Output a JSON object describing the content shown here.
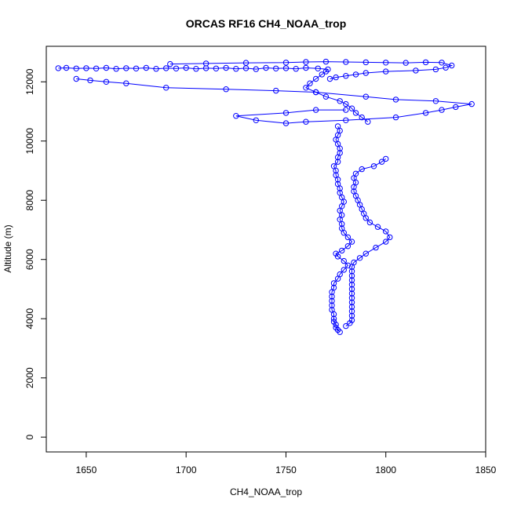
{
  "chart_data": {
    "type": "scatter",
    "title": "ORCAS RF16 CH4_NOAA_trop",
    "xlabel": "CH4_NOAA_trop",
    "ylabel": "Altitude (m)",
    "xlim": [
      1630,
      1850
    ],
    "ylim": [
      -500,
      13200
    ],
    "xticks": [
      1650,
      1700,
      1750,
      1800,
      1850
    ],
    "yticks": [
      0,
      2000,
      4000,
      6000,
      8000,
      10000,
      12000
    ],
    "grid": false,
    "legend": "none",
    "color": "#0000ff",
    "series": [
      {
        "points": [
          [
            1777,
            3550
          ],
          [
            1776,
            3620
          ],
          [
            1775,
            3700
          ],
          [
            1775,
            3800
          ],
          [
            1774,
            3900
          ],
          [
            1774,
            4000
          ],
          [
            1774,
            4150
          ],
          [
            1773,
            4300
          ],
          [
            1773,
            4450
          ],
          [
            1773,
            4600
          ],
          [
            1773,
            4750
          ],
          [
            1773,
            4900
          ],
          [
            1774,
            5050
          ],
          [
            1774,
            5200
          ],
          [
            1776,
            5350
          ],
          [
            1777,
            5500
          ],
          [
            1779,
            5650
          ],
          [
            1781,
            5800
          ],
          [
            1779,
            5950
          ],
          [
            1776,
            6100
          ],
          [
            1775,
            6200
          ],
          [
            1778,
            6300
          ],
          [
            1781,
            6450
          ],
          [
            1783,
            6600
          ],
          [
            1781,
            6750
          ],
          [
            1779,
            6900
          ],
          [
            1778,
            7050
          ],
          [
            1778,
            7200
          ],
          [
            1777,
            7350
          ],
          [
            1778,
            7500
          ],
          [
            1777,
            7650
          ],
          [
            1778,
            7800
          ],
          [
            1779,
            7950
          ],
          [
            1778,
            8100
          ],
          [
            1777,
            8250
          ],
          [
            1777,
            8400
          ],
          [
            1776,
            8550
          ],
          [
            1776,
            8700
          ],
          [
            1775,
            8850
          ],
          [
            1775,
            9000
          ],
          [
            1774,
            9150
          ],
          [
            1776,
            9300
          ],
          [
            1776,
            9450
          ],
          [
            1777,
            9600
          ],
          [
            1777,
            9750
          ],
          [
            1776,
            9900
          ],
          [
            1775,
            10050
          ],
          [
            1776,
            10200
          ],
          [
            1777,
            10350
          ],
          [
            1776,
            10500
          ]
        ]
      },
      {
        "points": [
          [
            1791,
            10650
          ],
          [
            1788,
            10800
          ],
          [
            1785,
            10950
          ],
          [
            1783,
            11100
          ],
          [
            1780,
            11250
          ],
          [
            1777,
            11350
          ],
          [
            1770,
            11500
          ],
          [
            1765,
            11650
          ],
          [
            1760,
            11800
          ],
          [
            1762,
            11950
          ],
          [
            1765,
            12100
          ],
          [
            1768,
            12250
          ],
          [
            1770,
            12350
          ],
          [
            1771,
            12420
          ],
          [
            1766,
            12450
          ],
          [
            1760,
            12470
          ],
          [
            1755,
            12440
          ],
          [
            1750,
            12460
          ],
          [
            1745,
            12450
          ],
          [
            1740,
            12470
          ],
          [
            1735,
            12430
          ],
          [
            1730,
            12460
          ],
          [
            1725,
            12440
          ],
          [
            1720,
            12470
          ],
          [
            1715,
            12450
          ],
          [
            1710,
            12460
          ],
          [
            1705,
            12440
          ],
          [
            1700,
            12470
          ],
          [
            1695,
            12450
          ],
          [
            1690,
            12460
          ],
          [
            1685,
            12440
          ],
          [
            1680,
            12470
          ],
          [
            1675,
            12450
          ],
          [
            1670,
            12460
          ],
          [
            1665,
            12440
          ],
          [
            1660,
            12470
          ],
          [
            1655,
            12450
          ],
          [
            1650,
            12460
          ],
          [
            1645,
            12450
          ],
          [
            1640,
            12470
          ],
          [
            1636,
            12460
          ]
        ]
      },
      {
        "points": [
          [
            1645,
            12100
          ],
          [
            1652,
            12050
          ],
          [
            1660,
            12000
          ],
          [
            1670,
            11950
          ],
          [
            1690,
            11800
          ],
          [
            1720,
            11750
          ],
          [
            1745,
            11700
          ],
          [
            1765,
            11650
          ],
          [
            1790,
            11500
          ],
          [
            1805,
            11400
          ],
          [
            1825,
            11350
          ],
          [
            1843,
            11250
          ],
          [
            1835,
            11150
          ],
          [
            1828,
            11050
          ],
          [
            1820,
            10950
          ],
          [
            1805,
            10800
          ],
          [
            1780,
            10700
          ],
          [
            1760,
            10650
          ],
          [
            1750,
            10600
          ],
          [
            1735,
            10700
          ],
          [
            1725,
            10850
          ],
          [
            1750,
            10950
          ],
          [
            1765,
            11050
          ],
          [
            1780,
            11050
          ]
        ]
      },
      {
        "points": [
          [
            1800,
            9400
          ],
          [
            1798,
            9300
          ],
          [
            1794,
            9150
          ],
          [
            1788,
            9050
          ],
          [
            1785,
            8900
          ],
          [
            1784,
            8750
          ],
          [
            1785,
            8600
          ],
          [
            1784,
            8450
          ],
          [
            1784,
            8300
          ],
          [
            1785,
            8150
          ],
          [
            1786,
            8000
          ],
          [
            1787,
            7850
          ],
          [
            1788,
            7700
          ],
          [
            1789,
            7550
          ],
          [
            1790,
            7400
          ],
          [
            1792,
            7250
          ],
          [
            1796,
            7100
          ],
          [
            1800,
            6950
          ],
          [
            1802,
            6750
          ],
          [
            1800,
            6600
          ],
          [
            1795,
            6400
          ],
          [
            1790,
            6200
          ],
          [
            1787,
            6050
          ],
          [
            1784,
            5900
          ],
          [
            1783,
            5750
          ],
          [
            1783,
            5600
          ],
          [
            1783,
            5450
          ],
          [
            1783,
            5300
          ],
          [
            1783,
            5150
          ],
          [
            1783,
            5000
          ],
          [
            1783,
            4850
          ],
          [
            1783,
            4700
          ],
          [
            1783,
            4550
          ],
          [
            1783,
            4400
          ],
          [
            1783,
            4250
          ],
          [
            1783,
            4100
          ],
          [
            1783,
            3950
          ],
          [
            1782,
            3850
          ],
          [
            1780,
            3750
          ]
        ]
      },
      {
        "points": [
          [
            1692,
            12600
          ],
          [
            1710,
            12620
          ],
          [
            1730,
            12640
          ],
          [
            1750,
            12650
          ],
          [
            1760,
            12670
          ],
          [
            1770,
            12680
          ],
          [
            1780,
            12670
          ],
          [
            1790,
            12660
          ],
          [
            1800,
            12650
          ],
          [
            1810,
            12640
          ],
          [
            1820,
            12660
          ],
          [
            1828,
            12650
          ],
          [
            1833,
            12550
          ],
          [
            1830,
            12480
          ],
          [
            1825,
            12420
          ],
          [
            1815,
            12380
          ],
          [
            1800,
            12350
          ],
          [
            1790,
            12300
          ],
          [
            1785,
            12250
          ],
          [
            1780,
            12200
          ],
          [
            1775,
            12150
          ],
          [
            1772,
            12100
          ]
        ]
      }
    ]
  }
}
